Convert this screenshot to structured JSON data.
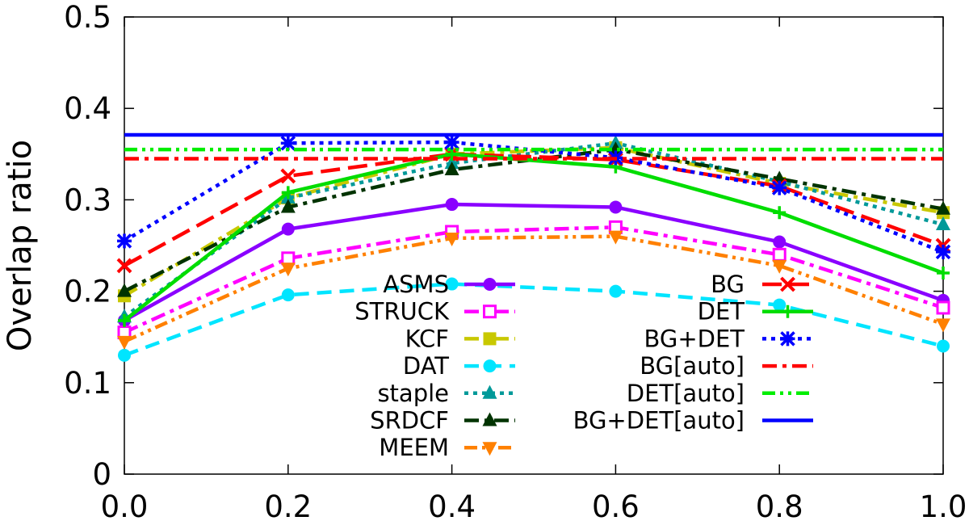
{
  "chart_data": {
    "type": "line",
    "title": "",
    "xlabel": "",
    "ylabel": "Overlap ratio",
    "xlim": [
      0.0,
      1.0
    ],
    "ylim": [
      0,
      0.5
    ],
    "x": [
      0.0,
      0.2,
      0.4,
      0.6,
      0.8,
      1.0
    ],
    "x_tick_labels": [
      "0.0",
      "0.2",
      "0.4",
      "0.6",
      "0.8",
      "1.0"
    ],
    "y_ticks": [
      0,
      0.1,
      0.2,
      0.3,
      0.4,
      0.5
    ],
    "y_tick_labels": [
      "0",
      "0.1",
      "0.2",
      "0.3",
      "0.4",
      "0.5"
    ],
    "grid": false,
    "legend_placement": "bottom-center, two columns",
    "series": [
      {
        "name": "ASMS",
        "values": [
          0.168,
          0.268,
          0.295,
          0.292,
          0.254,
          0.19
        ],
        "color": "#8a00ff",
        "dash": "solid",
        "marker": "circle"
      },
      {
        "name": "STRUCK",
        "values": [
          0.155,
          0.236,
          0.265,
          0.27,
          0.24,
          0.182
        ],
        "color": "#ff00ff",
        "dash": "dashdot",
        "marker": "square-open"
      },
      {
        "name": "KCF",
        "values": [
          0.195,
          0.302,
          0.35,
          0.357,
          0.318,
          0.286
        ],
        "color": "#c8c800",
        "dash": "dashdot",
        "marker": "square"
      },
      {
        "name": "DAT",
        "values": [
          0.13,
          0.196,
          0.208,
          0.2,
          0.185,
          0.14
        ],
        "color": "#00e5ff",
        "dash": "dashed",
        "marker": "circle"
      },
      {
        "name": "staple",
        "values": [
          0.172,
          0.302,
          0.34,
          0.362,
          0.32,
          0.273
        ],
        "color": "#009999",
        "dash": "dotted",
        "marker": "triangle"
      },
      {
        "name": "SRDCF",
        "values": [
          0.2,
          0.292,
          0.333,
          0.355,
          0.323,
          0.29
        ],
        "color": "#003300",
        "dash": "dashdot",
        "marker": "triangle"
      },
      {
        "name": "MEEM",
        "values": [
          0.145,
          0.225,
          0.258,
          0.26,
          0.228,
          0.164
        ],
        "color": "#ff8000",
        "dash": "dashdotdot",
        "marker": "triangle-down"
      },
      {
        "name": "BG",
        "values": [
          0.228,
          0.326,
          0.35,
          0.344,
          0.315,
          0.25
        ],
        "color": "#ff0000",
        "dash": "longdash",
        "marker": "x"
      },
      {
        "name": "DET",
        "values": [
          0.168,
          0.308,
          0.35,
          0.336,
          0.286,
          0.22
        ],
        "color": "#00dd00",
        "dash": "solid",
        "marker": "plus"
      },
      {
        "name": "BG+DET",
        "values": [
          0.255,
          0.362,
          0.363,
          0.346,
          0.313,
          0.243
        ],
        "color": "#0000ff",
        "dash": "dotted",
        "marker": "star"
      },
      {
        "name": "BG[auto]",
        "values": [
          0.345,
          0.345,
          0.345,
          0.345,
          0.345,
          0.345
        ],
        "color": "#ff0000",
        "dash": "dashdot",
        "marker": "none"
      },
      {
        "name": "DET[auto]",
        "values": [
          0.355,
          0.355,
          0.355,
          0.355,
          0.355,
          0.355
        ],
        "color": "#00ee00",
        "dash": "dashdotdot",
        "marker": "none"
      },
      {
        "name": "BG+DET[auto]",
        "values": [
          0.371,
          0.371,
          0.371,
          0.371,
          0.371,
          0.371
        ],
        "color": "#0000ff",
        "dash": "solid",
        "marker": "none"
      }
    ]
  }
}
